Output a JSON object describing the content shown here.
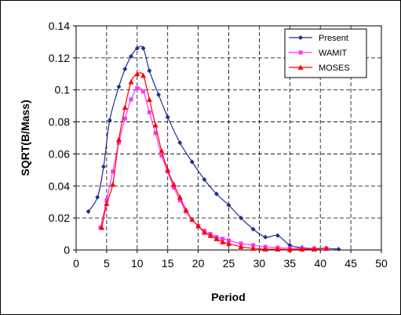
{
  "chart_data": {
    "type": "line",
    "title": "",
    "xlabel": "Period",
    "ylabel": "SQRT(B/Mass)",
    "xlim": [
      0,
      50
    ],
    "ylim": [
      0,
      0.14
    ],
    "xticks": [
      0,
      5,
      10,
      15,
      20,
      25,
      30,
      35,
      40,
      45,
      50
    ],
    "yticks": [
      0,
      0.02,
      0.04,
      0.06,
      0.08,
      0.1,
      0.12,
      0.14
    ],
    "xtick_labels": [
      "0",
      "5",
      "10",
      "15",
      "20",
      "25",
      "30",
      "35",
      "40",
      "45",
      "50"
    ],
    "ytick_labels": [
      "0",
      "0.02",
      "0.04",
      "0.06",
      "0.08",
      "0.1",
      "0.12",
      "0.14"
    ],
    "grid": true,
    "legend_position": "top-right",
    "series": [
      {
        "name": "Present",
        "color": "#1f2f8f",
        "marker": "diamond",
        "x": [
          2,
          3.5,
          4.5,
          5.5,
          7,
          8,
          9,
          10,
          11,
          12,
          13.5,
          15,
          17,
          19,
          21,
          23,
          25,
          27,
          29,
          31,
          33,
          35,
          37,
          39,
          41,
          43
        ],
        "y": [
          0.024,
          0.033,
          0.052,
          0.081,
          0.102,
          0.113,
          0.121,
          0.126,
          0.126,
          0.112,
          0.097,
          0.083,
          0.067,
          0.055,
          0.044,
          0.035,
          0.028,
          0.02,
          0.013,
          0.008,
          0.009,
          0.003,
          0.0015,
          0.001,
          0.001,
          0.0005
        ]
      },
      {
        "name": "WAMIT",
        "color": "#ff33ff",
        "marker": "square",
        "x": [
          4,
          5,
          6,
          7,
          8,
          9,
          10,
          11,
          12,
          13,
          14,
          15,
          16,
          17,
          18,
          19,
          20,
          21,
          22,
          23,
          24,
          25,
          27,
          29,
          31,
          33,
          35,
          37,
          39,
          41
        ],
        "y": [
          0.014,
          0.031,
          0.049,
          0.067,
          0.082,
          0.094,
          0.101,
          0.099,
          0.086,
          0.073,
          0.059,
          0.049,
          0.039,
          0.031,
          0.024,
          0.019,
          0.015,
          0.012,
          0.01,
          0.008,
          0.007,
          0.006,
          0.004,
          0.003,
          0.002,
          0.0015,
          0.001,
          0.001,
          0.001,
          0.001
        ]
      },
      {
        "name": "MOSES",
        "color": "#ff0000",
        "marker": "triangle",
        "x": [
          4.2,
          5,
          6,
          7,
          8,
          9,
          10,
          11,
          12,
          13,
          14,
          15,
          16,
          17,
          18,
          19,
          20,
          21,
          22,
          23,
          24,
          25,
          27,
          29,
          31,
          33,
          35,
          37,
          39,
          41
        ],
        "y": [
          0.014,
          0.029,
          0.041,
          0.069,
          0.089,
          0.105,
          0.11,
          0.109,
          0.094,
          0.078,
          0.062,
          0.05,
          0.041,
          0.033,
          0.025,
          0.019,
          0.015,
          0.011,
          0.009,
          0.007,
          0.005,
          0.004,
          0.002,
          0.001,
          0.0005,
          0.0005,
          0.0003,
          0.0005,
          0.0005,
          0.001
        ]
      }
    ]
  }
}
